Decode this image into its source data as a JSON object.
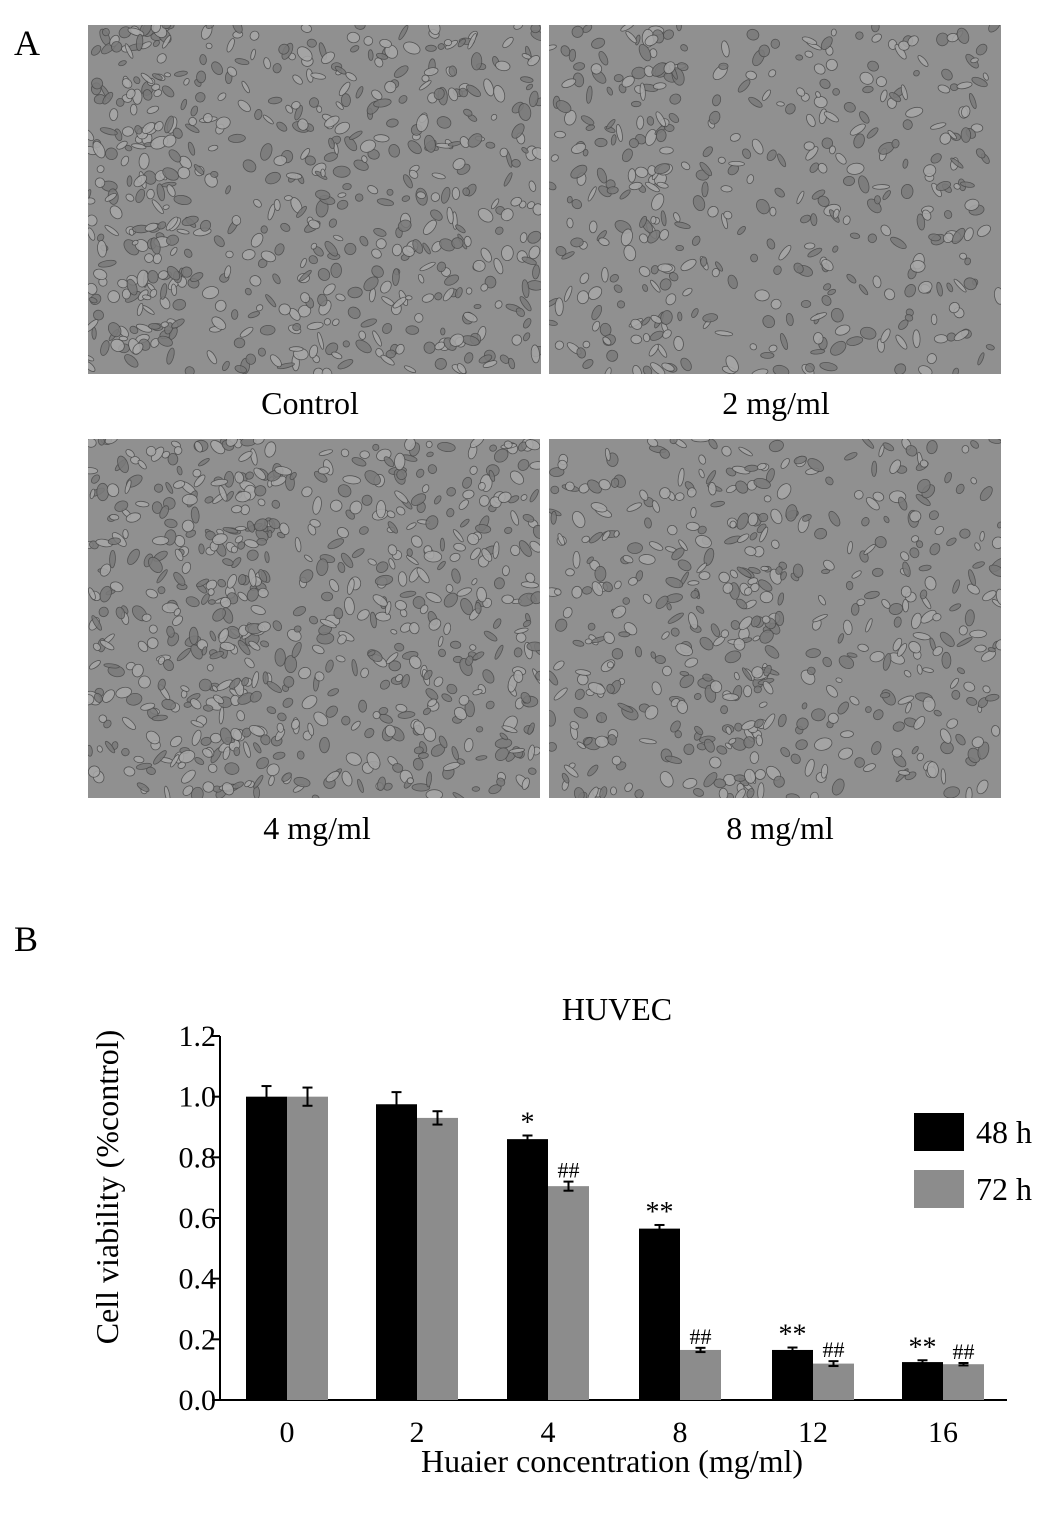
{
  "panel_a": {
    "label": "A",
    "images": [
      {
        "caption": "Control"
      },
      {
        "caption": "2 mg/ml"
      },
      {
        "caption": "4 mg/ml"
      },
      {
        "caption": "8 mg/ml"
      }
    ]
  },
  "panel_b": {
    "label": "B"
  },
  "chart_data": {
    "type": "bar",
    "title": "HUVEC",
    "xlabel": "Huaier concentration (mg/ml)",
    "ylabel": "Cell viability (%control)",
    "categories": [
      "0",
      "2",
      "4",
      "8",
      "12",
      "16"
    ],
    "ylim": [
      0.0,
      1.2
    ],
    "yticks": [
      "0.0",
      "0.2",
      "0.4",
      "0.6",
      "0.8",
      "1.0",
      "1.2"
    ],
    "legend_position": "right",
    "series": [
      {
        "name": "48 h",
        "color": "#000000",
        "values": [
          1.0,
          0.975,
          0.86,
          0.565,
          0.165,
          0.125
        ],
        "errors": [
          0.035,
          0.04,
          0.012,
          0.012,
          0.008,
          0.006
        ],
        "annotations": [
          "",
          "",
          "*",
          "**",
          "**",
          "**"
        ]
      },
      {
        "name": "72 h",
        "color": "#8c8c8c",
        "values": [
          1.0,
          0.93,
          0.705,
          0.165,
          0.12,
          0.118
        ],
        "errors": [
          0.03,
          0.022,
          0.015,
          0.007,
          0.008,
          0.004
        ],
        "annotations": [
          "",
          "",
          "##",
          "##",
          "##",
          "##"
        ]
      }
    ]
  }
}
